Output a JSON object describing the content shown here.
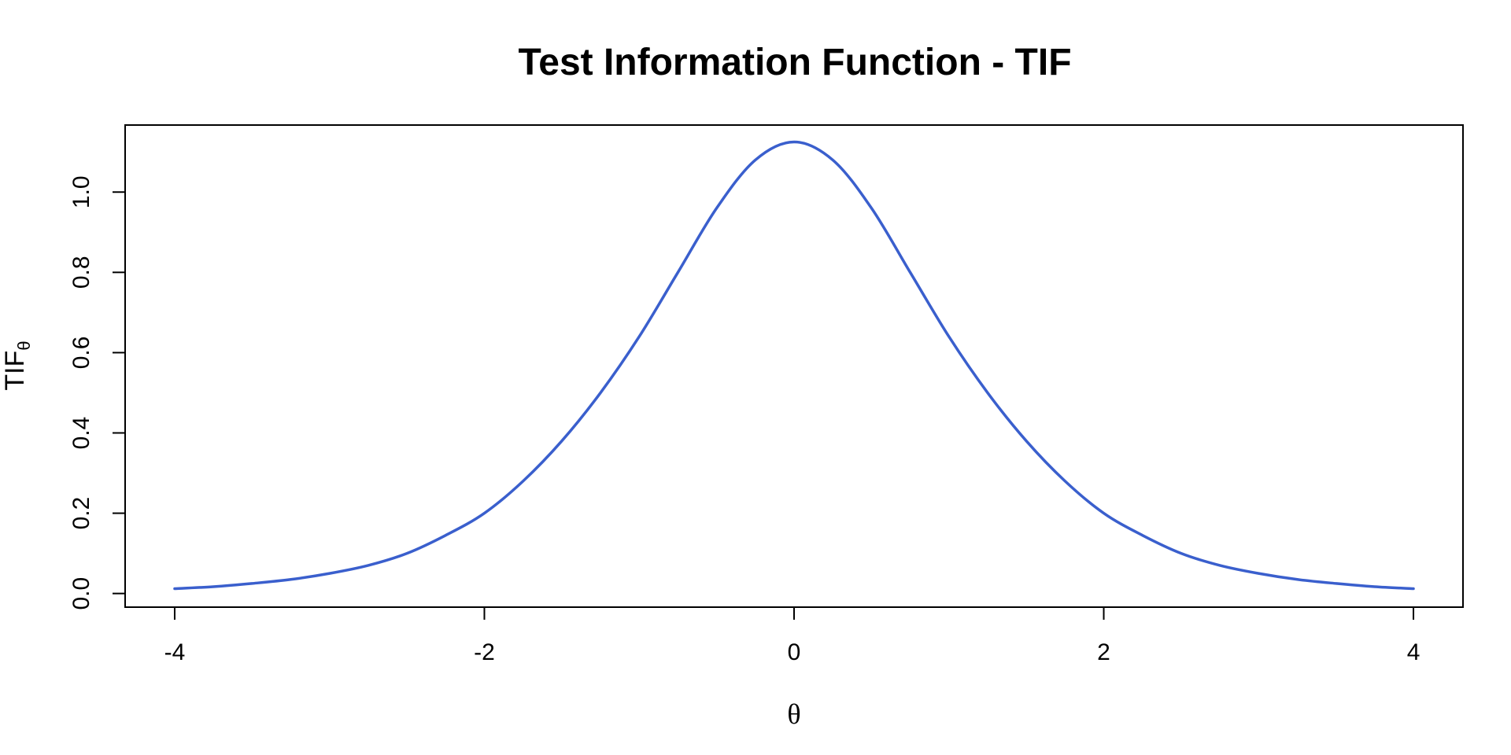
{
  "chart_data": {
    "type": "line",
    "title": "Test Information Function - TIF",
    "xlabel": "θ",
    "ylabel": {
      "main": "TIF",
      "subscript": "θ"
    },
    "xlim": [
      -4.32,
      4.32
    ],
    "ylim": [
      -0.034,
      1.167
    ],
    "x_ticks": [
      -4,
      -2,
      0,
      2,
      4
    ],
    "x_tick_labels": [
      "-4",
      "-2",
      "0",
      "2",
      "4"
    ],
    "y_ticks": [
      0.0,
      0.2,
      0.4,
      0.6,
      0.8,
      1.0
    ],
    "y_tick_labels": [
      "0.0",
      "0.2",
      "0.4",
      "0.6",
      "0.8",
      "1.0"
    ],
    "grid": false,
    "legend": "none",
    "series": [
      {
        "color": "#3a5fcd",
        "x": [
          -4.0,
          -3.75,
          -3.5,
          -3.25,
          -3.0,
          -2.75,
          -2.5,
          -2.25,
          -2.0,
          -1.75,
          -1.5,
          -1.25,
          -1.0,
          -0.75,
          -0.5,
          -0.25,
          0.0,
          0.25,
          0.5,
          0.75,
          1.0,
          1.25,
          1.5,
          1.75,
          2.0,
          2.25,
          2.5,
          2.75,
          3.0,
          3.25,
          3.5,
          3.75,
          4.0
        ],
        "y": [
          0.012,
          0.017,
          0.025,
          0.035,
          0.05,
          0.07,
          0.1,
          0.145,
          0.2,
          0.28,
          0.38,
          0.5,
          0.64,
          0.8,
          0.96,
          1.08,
          1.125,
          1.08,
          0.96,
          0.8,
          0.64,
          0.5,
          0.38,
          0.28,
          0.2,
          0.145,
          0.1,
          0.07,
          0.05,
          0.035,
          0.025,
          0.017,
          0.012
        ]
      }
    ]
  }
}
